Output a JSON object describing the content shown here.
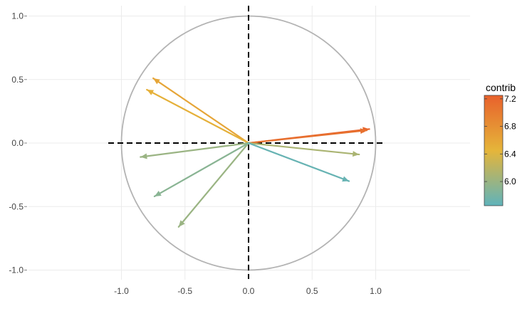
{
  "chart_data": {
    "type": "vector",
    "xlim": [
      -1.0,
      1.0
    ],
    "ylim": [
      -1.0,
      1.0
    ],
    "x_ticks": [
      -1.0,
      -0.5,
      0.0,
      0.5,
      1.0
    ],
    "x_tick_labels": [
      "-1.0",
      "-0.5",
      "0.0",
      "0.5",
      "1.0"
    ],
    "y_ticks": [
      1.0,
      0.5,
      0.0,
      -0.5,
      -1.0
    ],
    "y_tick_labels": [
      "1.0",
      "0.5",
      "0.0",
      "-0.5",
      "-1.0"
    ],
    "grid": true,
    "unit_circle": true,
    "reference_lines": "dashed lines at x = 0 and y = 0",
    "vectors": [
      {
        "x": 0.95,
        "y": 0.11,
        "contrib": 7.2
      },
      {
        "x": 0.93,
        "y": 0.1,
        "contrib": 7.1
      },
      {
        "x": -0.75,
        "y": 0.51,
        "contrib": 6.6
      },
      {
        "x": -0.8,
        "y": 0.42,
        "contrib": 6.5
      },
      {
        "x": 0.87,
        "y": -0.09,
        "contrib": 6.1
      },
      {
        "x": -0.85,
        "y": -0.11,
        "contrib": 6.0
      },
      {
        "x": -0.55,
        "y": -0.66,
        "contrib": 6.0
      },
      {
        "x": -0.74,
        "y": -0.42,
        "contrib": 5.9
      },
      {
        "x": 0.79,
        "y": -0.3,
        "contrib": 5.7
      }
    ],
    "legend": {
      "title": "contrib",
      "ticks": [
        7.2,
        6.8,
        6.4,
        6.0
      ],
      "tick_labels": [
        "7.2",
        "6.8",
        "6.4",
        "6.0"
      ],
      "range": [
        5.65,
        7.25
      ],
      "placement": "right"
    },
    "colors": {
      "low": "#5fb3bb",
      "mid": "#e5b53a",
      "high": "#e8612c",
      "dashed_lines": "#000000",
      "circle": "#b3b3b3",
      "grid": "#ebebeb"
    }
  }
}
